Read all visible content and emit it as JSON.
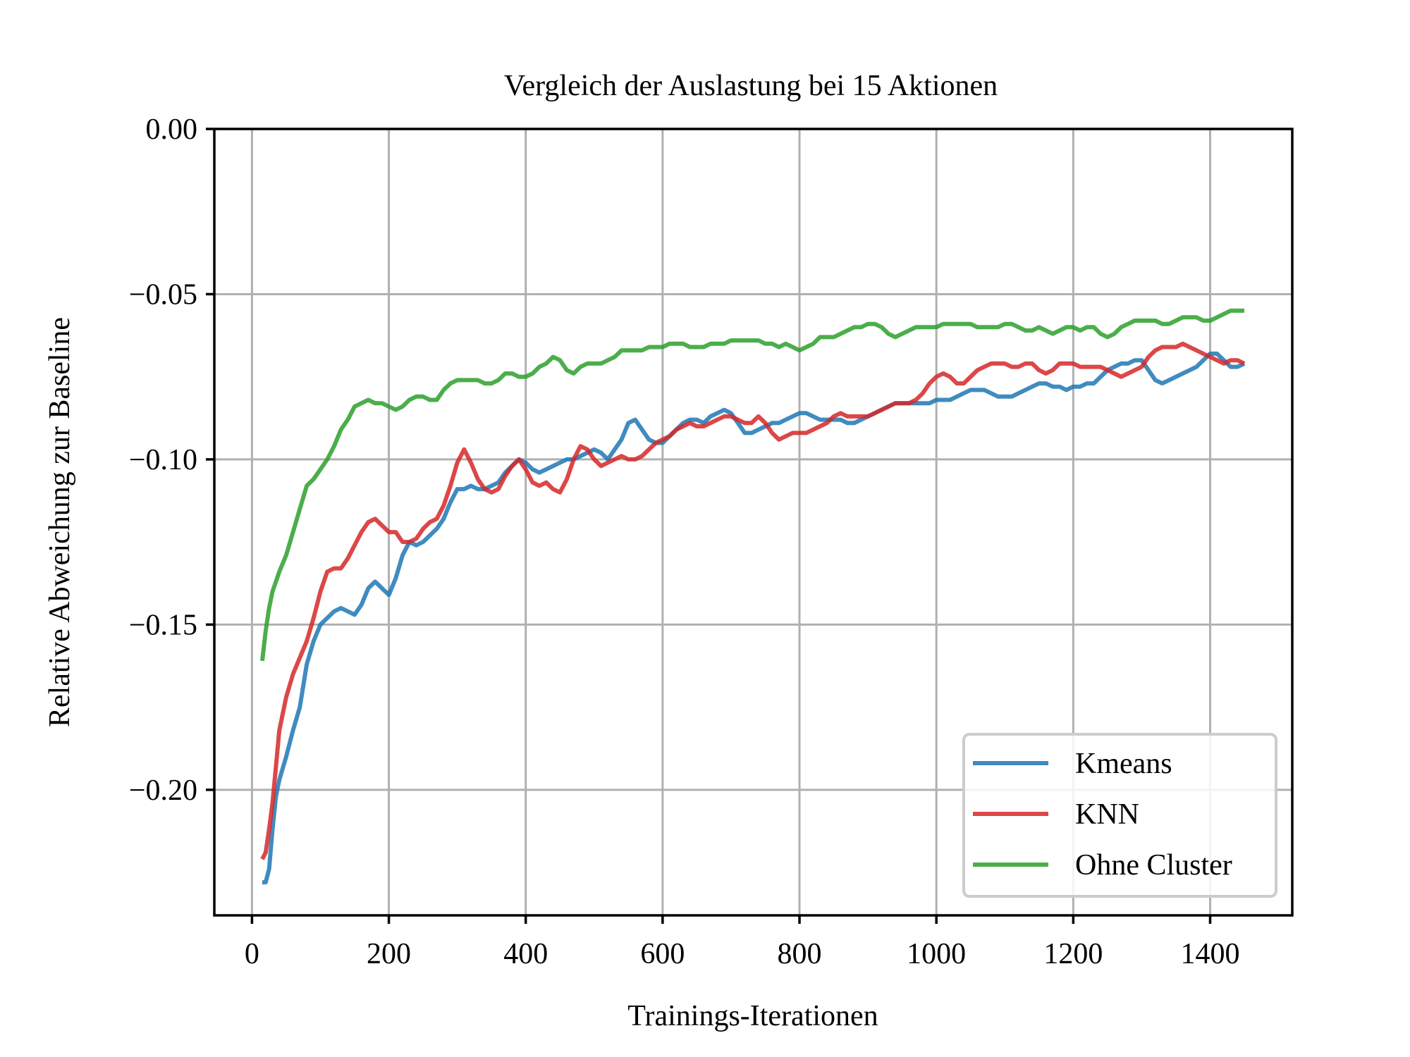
{
  "chart_data": {
    "type": "line",
    "title": "Vergleich der Auslastung bei 15 Aktionen",
    "xlabel": "Trainings-Iterationen",
    "ylabel": "Relative Abweichung zur Baseline",
    "xlim": [
      -55,
      1520
    ],
    "ylim": [
      -0.238,
      0.0
    ],
    "xticks": [
      0,
      200,
      400,
      600,
      800,
      1000,
      1200,
      1400
    ],
    "xtick_labels": [
      "0",
      "200",
      "400",
      "600",
      "800",
      "1000",
      "1200",
      "1400"
    ],
    "yticks": [
      0.0,
      -0.05,
      -0.1,
      -0.15,
      -0.2
    ],
    "ytick_labels": [
      "0.00",
      "−0.05",
      "−0.10",
      "−0.15",
      "−0.20"
    ],
    "grid": true,
    "legend_position": "lower-right",
    "series": [
      {
        "name": "Kmeans",
        "color": "#1f77b4",
        "x": [
          15,
          20,
          25,
          30,
          35,
          40,
          50,
          60,
          70,
          80,
          90,
          100,
          110,
          120,
          130,
          140,
          150,
          160,
          170,
          180,
          190,
          200,
          210,
          220,
          230,
          240,
          250,
          260,
          270,
          280,
          290,
          300,
          310,
          320,
          330,
          340,
          350,
          360,
          370,
          380,
          390,
          400,
          410,
          420,
          430,
          440,
          450,
          460,
          470,
          480,
          490,
          500,
          510,
          520,
          530,
          540,
          550,
          560,
          570,
          580,
          590,
          600,
          610,
          620,
          630,
          640,
          650,
          660,
          670,
          680,
          690,
          700,
          710,
          720,
          730,
          740,
          750,
          760,
          770,
          780,
          790,
          800,
          810,
          820,
          830,
          840,
          850,
          860,
          870,
          880,
          890,
          900,
          910,
          920,
          930,
          940,
          950,
          960,
          970,
          980,
          990,
          1000,
          1010,
          1020,
          1030,
          1040,
          1050,
          1060,
          1070,
          1080,
          1090,
          1100,
          1110,
          1120,
          1130,
          1140,
          1150,
          1160,
          1170,
          1180,
          1190,
          1200,
          1210,
          1220,
          1230,
          1240,
          1250,
          1260,
          1270,
          1280,
          1290,
          1300,
          1310,
          1320,
          1330,
          1340,
          1350,
          1360,
          1370,
          1380,
          1390,
          1400,
          1410,
          1420,
          1430,
          1440,
          1450
        ],
        "y": [
          -0.228,
          -0.228,
          -0.224,
          -0.212,
          -0.202,
          -0.197,
          -0.19,
          -0.182,
          -0.175,
          -0.162,
          -0.155,
          -0.15,
          -0.148,
          -0.146,
          -0.145,
          -0.146,
          -0.147,
          -0.144,
          -0.139,
          -0.137,
          -0.139,
          -0.141,
          -0.136,
          -0.129,
          -0.125,
          -0.126,
          -0.125,
          -0.123,
          -0.121,
          -0.118,
          -0.113,
          -0.109,
          -0.109,
          -0.108,
          -0.109,
          -0.109,
          -0.108,
          -0.107,
          -0.104,
          -0.102,
          -0.1,
          -0.101,
          -0.103,
          -0.104,
          -0.103,
          -0.102,
          -0.101,
          -0.1,
          -0.1,
          -0.099,
          -0.098,
          -0.097,
          -0.098,
          -0.1,
          -0.097,
          -0.094,
          -0.089,
          -0.088,
          -0.091,
          -0.094,
          -0.095,
          -0.095,
          -0.093,
          -0.091,
          -0.089,
          -0.088,
          -0.088,
          -0.089,
          -0.087,
          -0.086,
          -0.085,
          -0.086,
          -0.089,
          -0.092,
          -0.092,
          -0.091,
          -0.09,
          -0.089,
          -0.089,
          -0.088,
          -0.087,
          -0.086,
          -0.086,
          -0.087,
          -0.088,
          -0.088,
          -0.088,
          -0.088,
          -0.089,
          -0.089,
          -0.088,
          -0.087,
          -0.086,
          -0.085,
          -0.084,
          -0.083,
          -0.083,
          -0.083,
          -0.083,
          -0.083,
          -0.083,
          -0.082,
          -0.082,
          -0.082,
          -0.081,
          -0.08,
          -0.079,
          -0.079,
          -0.079,
          -0.08,
          -0.081,
          -0.081,
          -0.081,
          -0.08,
          -0.079,
          -0.078,
          -0.077,
          -0.077,
          -0.078,
          -0.078,
          -0.079,
          -0.078,
          -0.078,
          -0.077,
          -0.077,
          -0.075,
          -0.073,
          -0.072,
          -0.071,
          -0.071,
          -0.07,
          -0.07,
          -0.073,
          -0.076,
          -0.077,
          -0.076,
          -0.075,
          -0.074,
          -0.073,
          -0.072,
          -0.07,
          -0.068,
          -0.068,
          -0.07,
          -0.072,
          -0.072,
          -0.071
        ]
      },
      {
        "name": "KNN",
        "color": "#d62728",
        "x": [
          15,
          20,
          25,
          30,
          35,
          40,
          50,
          60,
          70,
          80,
          90,
          100,
          110,
          120,
          130,
          140,
          150,
          160,
          170,
          180,
          190,
          200,
          210,
          220,
          230,
          240,
          250,
          260,
          270,
          280,
          290,
          300,
          310,
          320,
          330,
          340,
          350,
          360,
          370,
          380,
          390,
          400,
          410,
          420,
          430,
          440,
          450,
          460,
          470,
          480,
          490,
          500,
          510,
          520,
          530,
          540,
          550,
          560,
          570,
          580,
          590,
          600,
          610,
          620,
          630,
          640,
          650,
          660,
          670,
          680,
          690,
          700,
          710,
          720,
          730,
          740,
          750,
          760,
          770,
          780,
          790,
          800,
          810,
          820,
          830,
          840,
          850,
          860,
          870,
          880,
          890,
          900,
          910,
          920,
          930,
          940,
          950,
          960,
          970,
          980,
          990,
          1000,
          1010,
          1020,
          1030,
          1040,
          1050,
          1060,
          1070,
          1080,
          1090,
          1100,
          1110,
          1120,
          1130,
          1140,
          1150,
          1160,
          1170,
          1180,
          1190,
          1200,
          1210,
          1220,
          1230,
          1240,
          1250,
          1260,
          1270,
          1280,
          1290,
          1300,
          1310,
          1320,
          1330,
          1340,
          1350,
          1360,
          1370,
          1380,
          1390,
          1400,
          1410,
          1420,
          1430,
          1440,
          1450
        ],
        "y": [
          -0.221,
          -0.219,
          -0.212,
          -0.204,
          -0.193,
          -0.182,
          -0.172,
          -0.165,
          -0.16,
          -0.155,
          -0.148,
          -0.14,
          -0.134,
          -0.133,
          -0.133,
          -0.13,
          -0.126,
          -0.122,
          -0.119,
          -0.118,
          -0.12,
          -0.122,
          -0.122,
          -0.125,
          -0.125,
          -0.124,
          -0.121,
          -0.119,
          -0.118,
          -0.114,
          -0.108,
          -0.101,
          -0.097,
          -0.101,
          -0.106,
          -0.109,
          -0.11,
          -0.109,
          -0.105,
          -0.102,
          -0.1,
          -0.103,
          -0.107,
          -0.108,
          -0.107,
          -0.109,
          -0.11,
          -0.106,
          -0.1,
          -0.096,
          -0.097,
          -0.1,
          -0.102,
          -0.101,
          -0.1,
          -0.099,
          -0.1,
          -0.1,
          -0.099,
          -0.097,
          -0.095,
          -0.094,
          -0.093,
          -0.091,
          -0.09,
          -0.089,
          -0.09,
          -0.09,
          -0.089,
          -0.088,
          -0.087,
          -0.087,
          -0.088,
          -0.089,
          -0.089,
          -0.087,
          -0.089,
          -0.092,
          -0.094,
          -0.093,
          -0.092,
          -0.092,
          -0.092,
          -0.091,
          -0.09,
          -0.089,
          -0.087,
          -0.086,
          -0.087,
          -0.087,
          -0.087,
          -0.087,
          -0.086,
          -0.085,
          -0.084,
          -0.083,
          -0.083,
          -0.083,
          -0.082,
          -0.08,
          -0.077,
          -0.075,
          -0.074,
          -0.075,
          -0.077,
          -0.077,
          -0.075,
          -0.073,
          -0.072,
          -0.071,
          -0.071,
          -0.071,
          -0.072,
          -0.072,
          -0.071,
          -0.071,
          -0.073,
          -0.074,
          -0.073,
          -0.071,
          -0.071,
          -0.071,
          -0.072,
          -0.072,
          -0.072,
          -0.072,
          -0.073,
          -0.074,
          -0.075,
          -0.074,
          -0.073,
          -0.072,
          -0.069,
          -0.067,
          -0.066,
          -0.066,
          -0.066,
          -0.065,
          -0.066,
          -0.067,
          -0.068,
          -0.069,
          -0.07,
          -0.071,
          -0.07,
          -0.07,
          -0.071
        ]
      },
      {
        "name": "Ohne Cluster",
        "color": "#2ca02c",
        "x": [
          15,
          20,
          25,
          30,
          35,
          40,
          50,
          60,
          70,
          80,
          90,
          100,
          110,
          120,
          130,
          140,
          150,
          160,
          170,
          180,
          190,
          200,
          210,
          220,
          230,
          240,
          250,
          260,
          270,
          280,
          290,
          300,
          310,
          320,
          330,
          340,
          350,
          360,
          370,
          380,
          390,
          400,
          410,
          420,
          430,
          440,
          450,
          460,
          470,
          480,
          490,
          500,
          510,
          520,
          530,
          540,
          550,
          560,
          570,
          580,
          590,
          600,
          610,
          620,
          630,
          640,
          650,
          660,
          670,
          680,
          690,
          700,
          710,
          720,
          730,
          740,
          750,
          760,
          770,
          780,
          790,
          800,
          810,
          820,
          830,
          840,
          850,
          860,
          870,
          880,
          890,
          900,
          910,
          920,
          930,
          940,
          950,
          960,
          970,
          980,
          990,
          1000,
          1010,
          1020,
          1030,
          1040,
          1050,
          1060,
          1070,
          1080,
          1090,
          1100,
          1110,
          1120,
          1130,
          1140,
          1150,
          1160,
          1170,
          1180,
          1190,
          1200,
          1210,
          1220,
          1230,
          1240,
          1250,
          1260,
          1270,
          1280,
          1290,
          1300,
          1310,
          1320,
          1330,
          1340,
          1350,
          1360,
          1370,
          1380,
          1390,
          1400,
          1410,
          1420,
          1430,
          1440,
          1450
        ],
        "y": [
          -0.161,
          -0.152,
          -0.145,
          -0.14,
          -0.137,
          -0.134,
          -0.129,
          -0.122,
          -0.115,
          -0.108,
          -0.106,
          -0.103,
          -0.1,
          -0.096,
          -0.091,
          -0.088,
          -0.084,
          -0.083,
          -0.082,
          -0.083,
          -0.083,
          -0.084,
          -0.085,
          -0.084,
          -0.082,
          -0.081,
          -0.081,
          -0.082,
          -0.082,
          -0.079,
          -0.077,
          -0.076,
          -0.076,
          -0.076,
          -0.076,
          -0.077,
          -0.077,
          -0.076,
          -0.074,
          -0.074,
          -0.075,
          -0.075,
          -0.074,
          -0.072,
          -0.071,
          -0.069,
          -0.07,
          -0.073,
          -0.074,
          -0.072,
          -0.071,
          -0.071,
          -0.071,
          -0.07,
          -0.069,
          -0.067,
          -0.067,
          -0.067,
          -0.067,
          -0.066,
          -0.066,
          -0.066,
          -0.065,
          -0.065,
          -0.065,
          -0.066,
          -0.066,
          -0.066,
          -0.065,
          -0.065,
          -0.065,
          -0.064,
          -0.064,
          -0.064,
          -0.064,
          -0.064,
          -0.065,
          -0.065,
          -0.066,
          -0.065,
          -0.066,
          -0.067,
          -0.066,
          -0.065,
          -0.063,
          -0.063,
          -0.063,
          -0.062,
          -0.061,
          -0.06,
          -0.06,
          -0.059,
          -0.059,
          -0.06,
          -0.062,
          -0.063,
          -0.062,
          -0.061,
          -0.06,
          -0.06,
          -0.06,
          -0.06,
          -0.059,
          -0.059,
          -0.059,
          -0.059,
          -0.059,
          -0.06,
          -0.06,
          -0.06,
          -0.06,
          -0.059,
          -0.059,
          -0.06,
          -0.061,
          -0.061,
          -0.06,
          -0.061,
          -0.062,
          -0.061,
          -0.06,
          -0.06,
          -0.061,
          -0.06,
          -0.06,
          -0.062,
          -0.063,
          -0.062,
          -0.06,
          -0.059,
          -0.058,
          -0.058,
          -0.058,
          -0.058,
          -0.059,
          -0.059,
          -0.058,
          -0.057,
          -0.057,
          -0.057,
          -0.058,
          -0.058,
          -0.057,
          -0.056,
          -0.055,
          -0.055,
          -0.055
        ]
      }
    ]
  }
}
